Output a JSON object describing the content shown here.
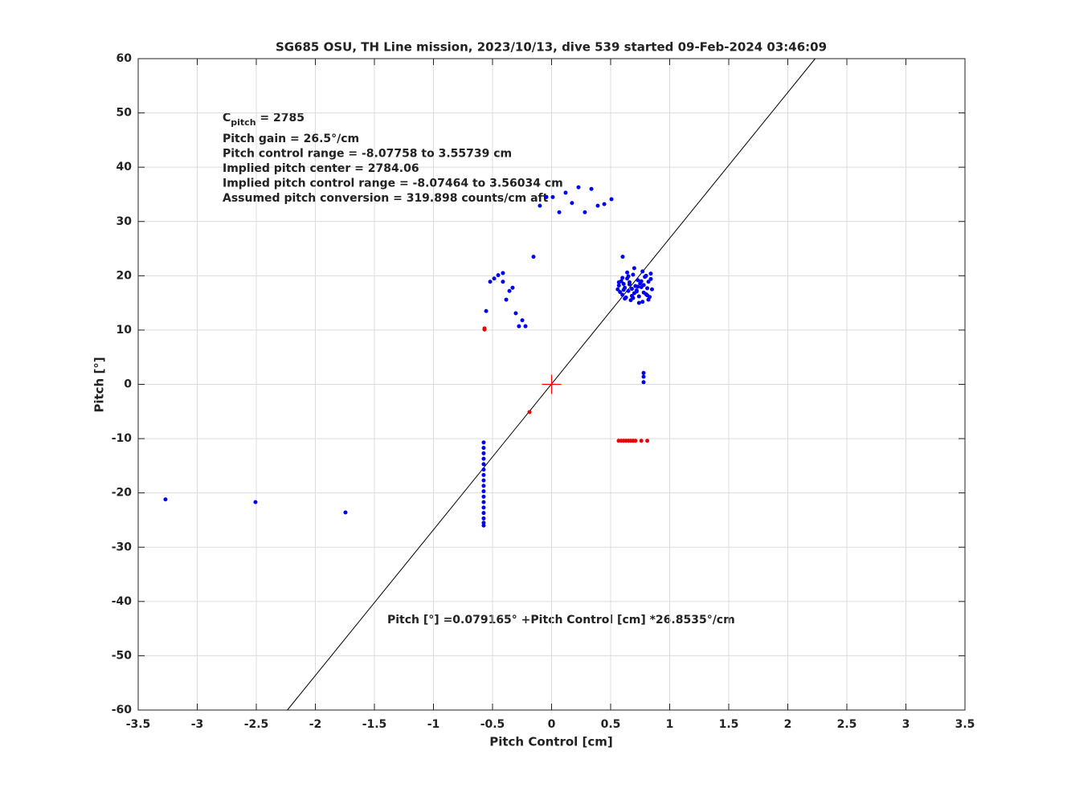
{
  "chart_data": {
    "type": "scatter",
    "title": "SG685 OSU, TH Line mission, 2023/10/13, dive 539 started 09-Feb-2024 03:46:09",
    "xlabel": "Pitch Control [cm]",
    "ylabel": "Pitch [°]",
    "xlim": [
      -3.5,
      3.5
    ],
    "ylim": [
      -60,
      60
    ],
    "xticks": [
      -3.5,
      -3,
      -2.5,
      -2,
      -1.5,
      -1,
      -0.5,
      0,
      0.5,
      1,
      1.5,
      2,
      2.5,
      3,
      3.5
    ],
    "yticks": [
      -60,
      -50,
      -40,
      -30,
      -20,
      -10,
      0,
      10,
      20,
      30,
      40,
      50,
      60
    ],
    "grid": true,
    "cpitch": {
      "symbol": "C",
      "subscript": "pitch",
      "text": " = 2785"
    },
    "annotations": [
      "Pitch gain = 26.5°/cm",
      "Pitch control range = -8.07758 to 3.55739 cm",
      "Implied pitch center = 2784.06",
      "Implied pitch control range = -8.07464 to 3.56034 cm",
      "Assumed pitch conversion = 319.898 counts/cm aft"
    ],
    "fit_label": "Pitch [°] =0.079165° +Pitch Control [cm] *26.8535°/cm",
    "fit": {
      "color": "#000000",
      "x": [
        -2.237,
        2.232
      ],
      "values": [
        -60,
        60
      ]
    },
    "center": {
      "color": "#ff0000",
      "x": 0,
      "y": 0
    },
    "series": [
      {
        "color": "#0000ee",
        "x": [
          -0.099,
          -0.044,
          0.01,
          0.065,
          0.119,
          0.173,
          0.228,
          0.282,
          0.337,
          0.391,
          0.446,
          0.507,
          -0.153,
          -0.52,
          -0.486,
          -0.452,
          -0.412,
          -0.412,
          -0.384,
          -0.357,
          -0.33,
          -0.554,
          -0.303,
          -0.248,
          -0.276,
          -0.221,
          0.602,
          0.779,
          0.779,
          0.779,
          -3.269,
          -2.507,
          -1.745,
          -0.575,
          -0.575,
          -0.575,
          -0.575,
          -0.575,
          -0.575,
          -0.575,
          -0.575,
          -0.575,
          -0.575,
          -0.575,
          -0.575,
          -0.575,
          -0.575,
          -0.575,
          -0.575,
          -0.575,
          0.56,
          0.57,
          0.58,
          0.59,
          0.6,
          0.61,
          0.62,
          0.63,
          0.64,
          0.65,
          0.66,
          0.67,
          0.68,
          0.69,
          0.7,
          0.71,
          0.72,
          0.73,
          0.74,
          0.75,
          0.76,
          0.77,
          0.78,
          0.79,
          0.8,
          0.81,
          0.82,
          0.83,
          0.84,
          0.85,
          0.57,
          0.6,
          0.62,
          0.64,
          0.66,
          0.68,
          0.7,
          0.72,
          0.74,
          0.76,
          0.78,
          0.8,
          0.82,
          0.84,
          0.61,
          0.65,
          0.69,
          0.73,
          0.77,
          0.81
        ],
        "values": [
          32.9,
          34.5,
          34.5,
          31.7,
          35.3,
          33.4,
          36.3,
          31.7,
          36.0,
          32.9,
          33.2,
          34.1,
          23.5,
          18.9,
          19.5,
          20.1,
          20.5,
          18.9,
          15.6,
          17.2,
          17.8,
          13.5,
          13.1,
          11.8,
          10.7,
          10.7,
          23.5,
          2.1,
          1.4,
          0.4,
          -21.2,
          -21.7,
          -23.6,
          -10.7,
          -11.7,
          -12.7,
          -13.7,
          -14.7,
          -15.7,
          -16.7,
          -17.7,
          -18.7,
          -19.7,
          -20.7,
          -21.7,
          -22.7,
          -23.7,
          -24.7,
          -25.5,
          -26.0,
          17.5,
          18.2,
          17.0,
          19.0,
          16.5,
          18.5,
          17.8,
          16.0,
          19.5,
          17.2,
          18.8,
          15.5,
          17.6,
          20.2,
          16.8,
          18.1,
          17.3,
          19.2,
          16.2,
          18.6,
          17.9,
          15.2,
          18.3,
          19.8,
          16.6,
          17.7,
          18.9,
          16.1,
          19.4,
          17.5,
          18.8,
          19.6,
          15.8,
          20.6,
          18.4,
          16.3,
          21.4,
          17.1,
          15.0,
          19.0,
          16.9,
          20.0,
          15.6,
          20.4,
          17.4,
          19.9,
          15.9,
          18.0,
          20.8,
          16.4
        ]
      },
      {
        "color": "#ee0000",
        "x": [
          -0.568,
          -0.568,
          -0.187,
          0.568,
          0.59,
          0.61,
          0.63,
          0.65,
          0.67,
          0.69,
          0.71,
          0.76,
          0.81
        ],
        "values": [
          10.1,
          10.3,
          -5.1,
          -10.4,
          -10.4,
          -10.4,
          -10.4,
          -10.4,
          -10.4,
          -10.4,
          -10.4,
          -10.4,
          -10.4
        ]
      }
    ]
  }
}
